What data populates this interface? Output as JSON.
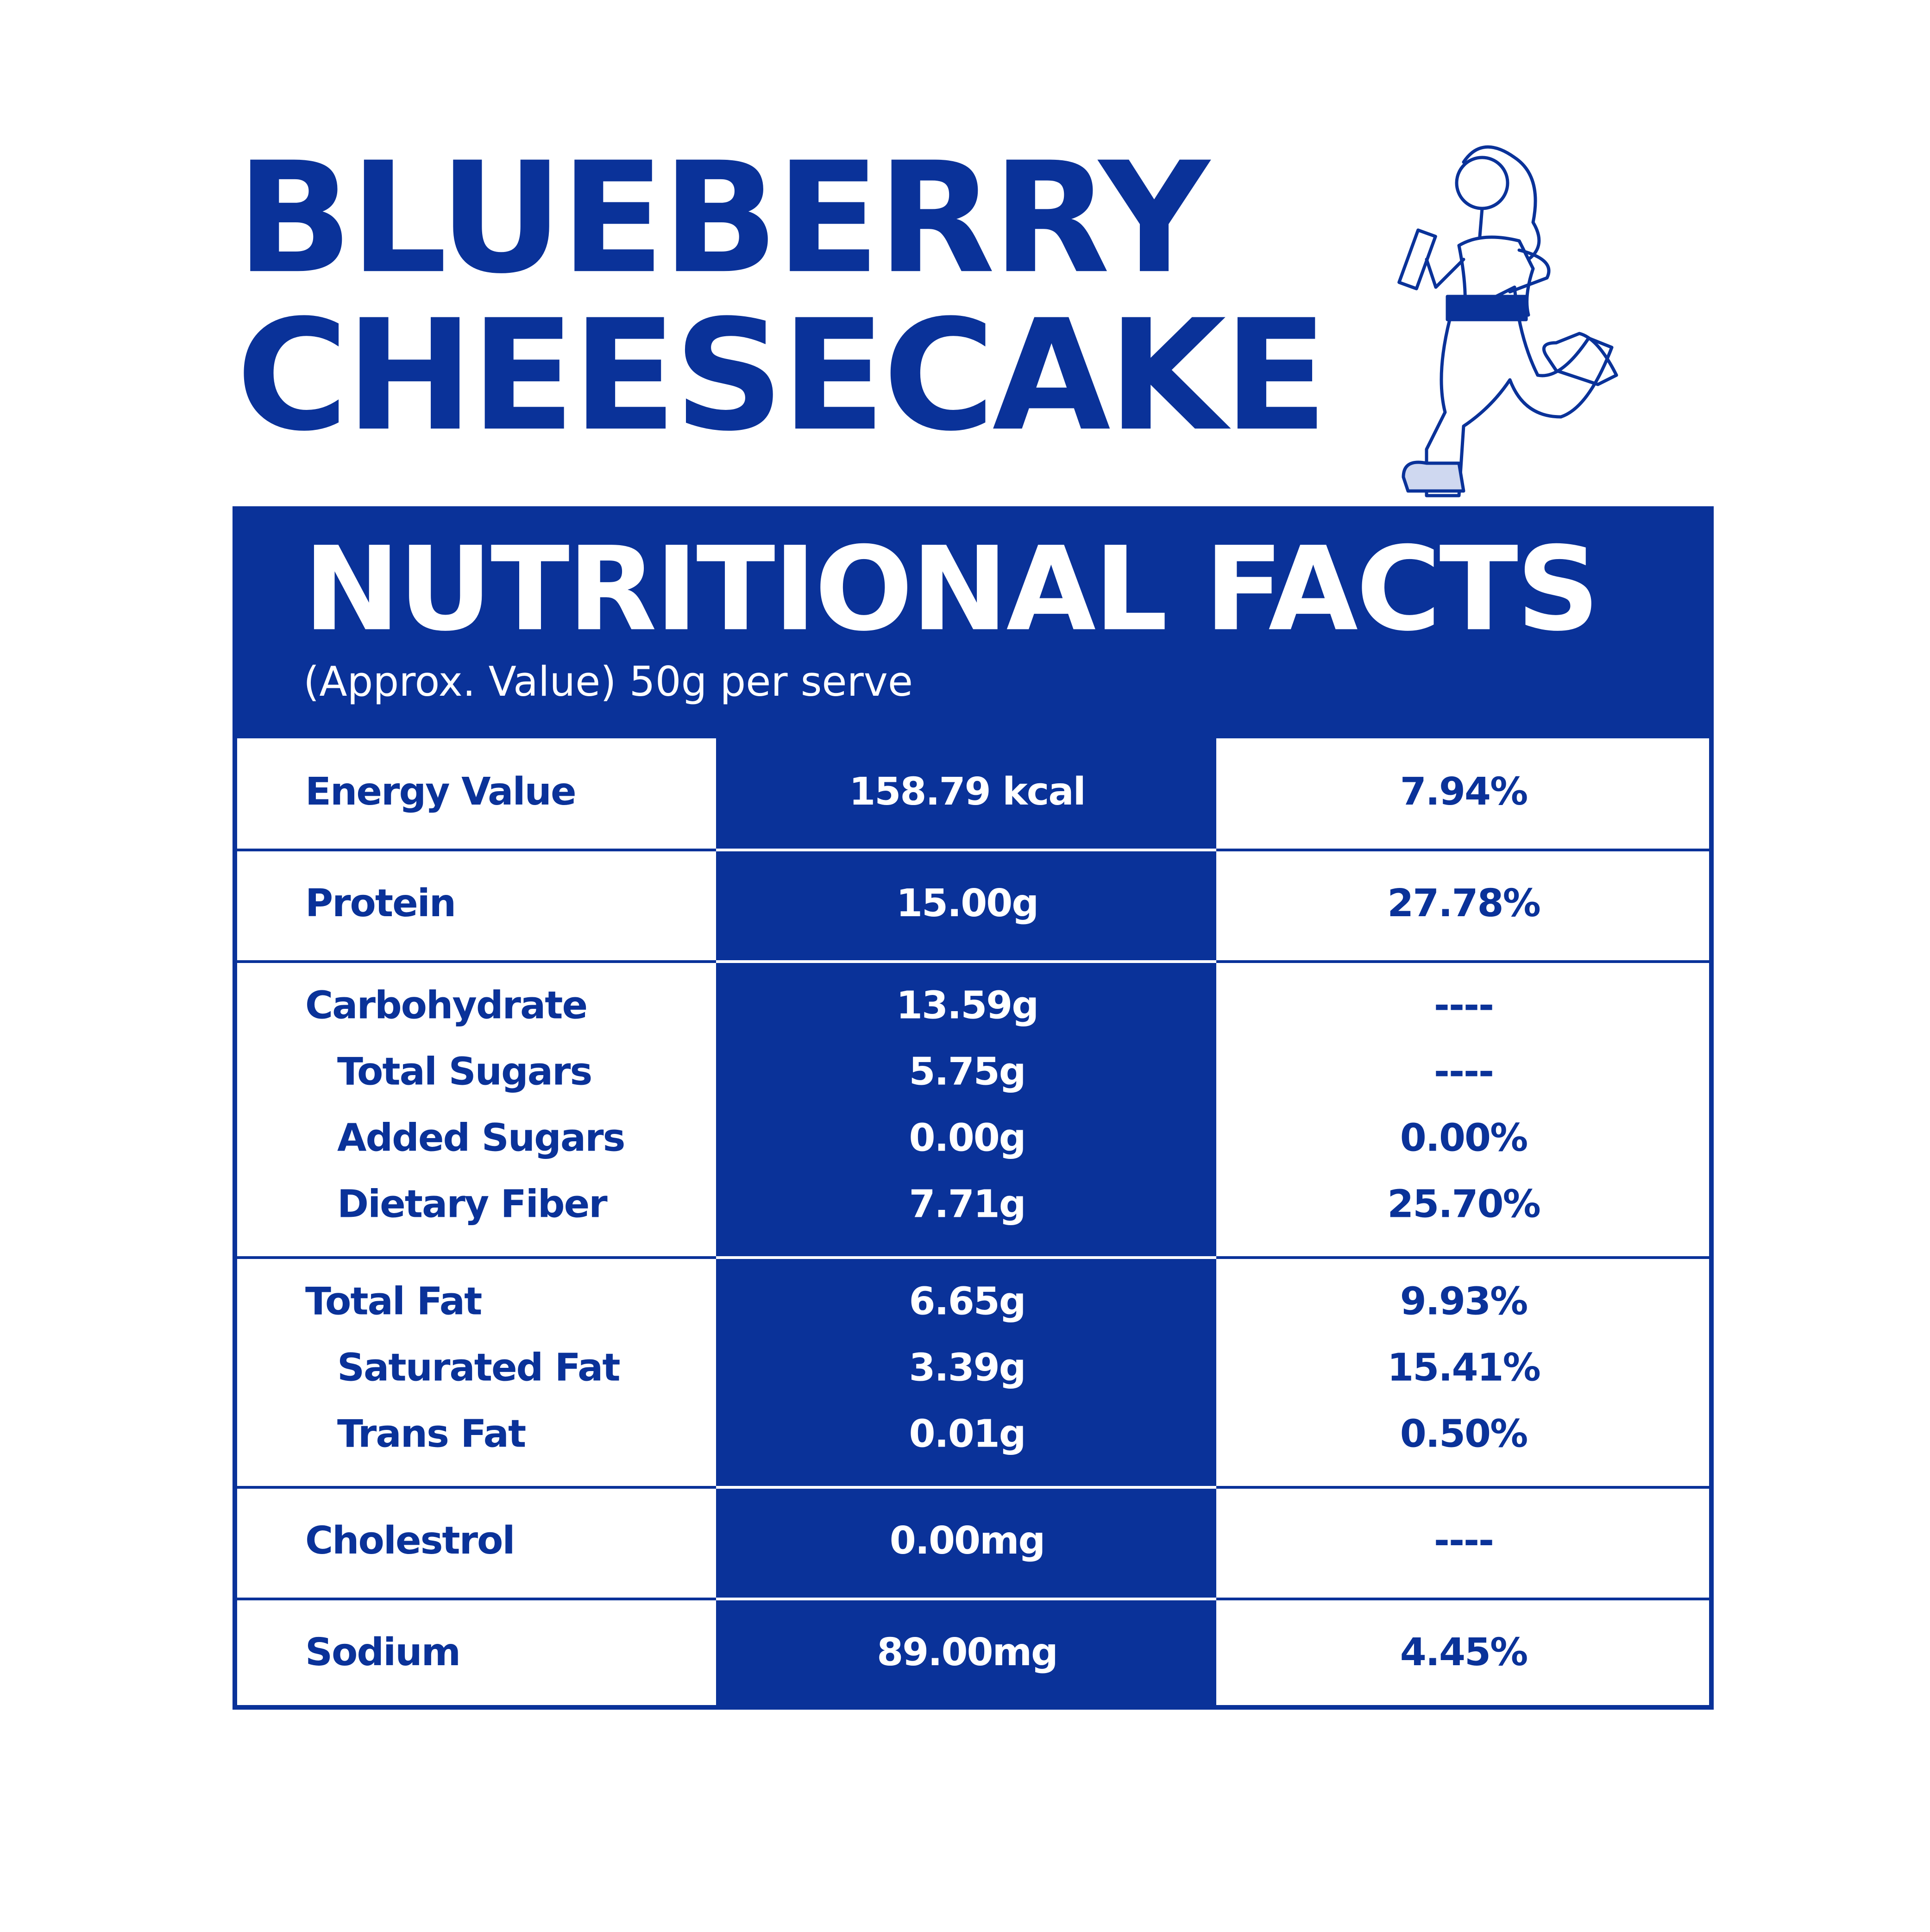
{
  "header": {
    "title_lines": [
      "BLUEBERRY",
      "CHEESECAKE"
    ]
  },
  "panel": {
    "title": "NUTRITIONAL FACTS",
    "subtitle": "(Approx. Value) 50g per serve"
  },
  "table": {
    "groups": [
      [
        [
          "Energy Value",
          "158.79 kcal",
          "7.94%"
        ]
      ],
      [
        [
          "Protein",
          "15.00g",
          "27.78%"
        ]
      ],
      [
        [
          "Carbohydrate",
          "13.59g",
          "----"
        ],
        [
          "Total Sugars",
          "5.75g",
          "----"
        ],
        [
          "Added Sugars",
          "0.00g",
          "0.00%"
        ],
        [
          "Dietary Fiber",
          "7.71g",
          "25.70%"
        ]
      ],
      [
        [
          "Total Fat",
          "6.65g",
          "9.93%"
        ],
        [
          "Saturated Fat",
          "3.39g",
          "15.41%"
        ],
        [
          "Trans Fat",
          "0.01g",
          "0.50%"
        ]
      ],
      [
        [
          "Cholestrol",
          "0.00mg",
          "----"
        ]
      ],
      [
        [
          "Sodium",
          "89.00mg",
          "4.45%"
        ]
      ]
    ]
  }
}
